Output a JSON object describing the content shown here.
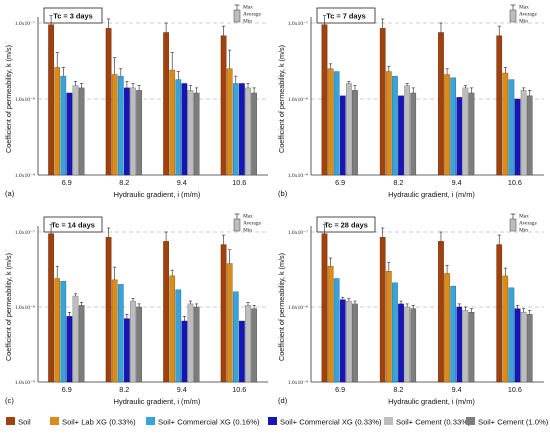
{
  "colors": {
    "series": [
      "#A0410E",
      "#D98C1A",
      "#37A3DC",
      "#1515B8",
      "#BDBDBD",
      "#7D7D7D"
    ]
  },
  "y_tick_labels": [
    "1.0x10⁻⁷",
    "1.0x10⁻⁸",
    "1.0x10⁻⁹"
  ],
  "legend_key": [
    "Max",
    "Average",
    "Min"
  ],
  "chart_data": [
    {
      "type": "bar",
      "panel_label": "(a)",
      "title": "Tc = 3 days",
      "xlabel": "Hydraulic gradient, i (m/m)",
      "ylabel": "Coefficient of permeability, k (m/s)",
      "categories": [
        "6.9",
        "8.2",
        "9.4",
        "10.6"
      ],
      "y_scale": "log",
      "ylim": [
        1e-09,
        1e-07
      ],
      "grid": "horizontal dashed",
      "series": [
        {
          "name": "Soil",
          "values": [
            9.5e-08,
            8.5e-08,
            7.5e-08,
            6.8e-08
          ],
          "err": [
            3e-08,
            2.8e-08,
            2.5e-08,
            2.3e-08
          ]
        },
        {
          "name": "Soil+ Lab XG (0.33%)",
          "values": [
            2.6e-08,
            2.1e-08,
            2.4e-08,
            2.5e-08
          ],
          "err": [
            1.5e-08,
            1.4e-08,
            1.7e-08,
            1.9e-08
          ]
        },
        {
          "name": "Soil+ Commercial XG (0.16%)",
          "values": [
            2e-08,
            2e-08,
            1.8e-08,
            1.6e-08
          ],
          "err": [
            6e-09,
            5e-09,
            5e-09,
            4e-09
          ]
        },
        {
          "name": "Soil+ Commercial XG (0.33%)",
          "values": [
            1.2e-08,
            1.4e-08,
            1.6e-08,
            1.6e-08
          ],
          "err": [
            0,
            3e-09,
            0,
            0
          ]
        },
        {
          "name": "Soil+ Cement (0.33%)",
          "values": [
            1.5e-08,
            1.4e-08,
            1.3e-08,
            1.4e-08
          ],
          "err": [
            2e-09,
            2e-09,
            2e-09,
            2e-09
          ]
        },
        {
          "name": "Soil+ Cement (1.0%)",
          "values": [
            1.4e-08,
            1.3e-08,
            1.2e-08,
            1.2e-08
          ],
          "err": [
            2e-09,
            2e-09,
            2e-09,
            2e-09
          ]
        }
      ]
    },
    {
      "type": "bar",
      "panel_label": "(b)",
      "title": "Tc = 7 days",
      "xlabel": "Hydraulic gradient, i (m/m)",
      "ylabel": "Coefficient of permeability, k (m/s)",
      "categories": [
        "6.9",
        "8.2",
        "9.4",
        "10.6"
      ],
      "y_scale": "log",
      "ylim": [
        1e-09,
        1e-07
      ],
      "grid": "horizontal dashed",
      "series": [
        {
          "name": "Soil",
          "values": [
            9.5e-08,
            8.5e-08,
            7.5e-08,
            6.8e-08
          ],
          "err": [
            3e-08,
            2.8e-08,
            2.5e-08,
            2.3e-08
          ]
        },
        {
          "name": "Soil+ Lab XG (0.33%)",
          "values": [
            2.5e-08,
            2.3e-08,
            2.1e-08,
            2.2e-08
          ],
          "err": [
            4e-09,
            4e-09,
            4e-09,
            4e-09
          ]
        },
        {
          "name": "Soil+ Commercial XG (0.16%)",
          "values": [
            2.3e-08,
            2e-08,
            1.9e-08,
            1.8e-08
          ],
          "err": [
            0,
            0,
            0,
            0
          ]
        },
        {
          "name": "Soil+ Commercial XG (0.33%)",
          "values": [
            1.1e-08,
            1.1e-08,
            1.05e-08,
            1e-08
          ],
          "err": [
            0,
            0,
            0,
            0
          ]
        },
        {
          "name": "Soil+ Cement (0.33%)",
          "values": [
            1.6e-08,
            1.5e-08,
            1.4e-08,
            1.3e-08
          ],
          "err": [
            1e-09,
            1e-09,
            1e-09,
            1e-09
          ]
        },
        {
          "name": "Soil+ Cement (1.0%)",
          "values": [
            1.3e-08,
            1.2e-08,
            1.2e-08,
            1.1e-08
          ],
          "err": [
            2e-09,
            2e-09,
            2e-09,
            2e-09
          ]
        }
      ]
    },
    {
      "type": "bar",
      "panel_label": "(c)",
      "title": "Tc = 14 days",
      "xlabel": "Hydraulic gradient, i (m/m)",
      "ylabel": "Coefficient of permeability, k (m/s)",
      "categories": [
        "6.9",
        "8.2",
        "9.4",
        "10.6"
      ],
      "y_scale": "log",
      "ylim": [
        1e-09,
        1e-07
      ],
      "grid": "horizontal dashed",
      "series": [
        {
          "name": "Soil",
          "values": [
            9.5e-08,
            8.5e-08,
            7.5e-08,
            6.8e-08
          ],
          "err": [
            3e-08,
            2.8e-08,
            2.5e-08,
            2.3e-08
          ]
        },
        {
          "name": "Soil+ Lab XG (0.33%)",
          "values": [
            2.4e-08,
            2.3e-08,
            2.6e-08,
            3.8e-08
          ],
          "err": [
            1.1e-08,
            1.1e-08,
            5e-09,
            2e-08
          ]
        },
        {
          "name": "Soil+ Commercial XG (0.16%)",
          "values": [
            2.2e-08,
            2e-08,
            1.7e-08,
            1.6e-08
          ],
          "err": [
            0,
            0,
            0,
            0
          ]
        },
        {
          "name": "Soil+ Commercial XG (0.33%)",
          "values": [
            7.5e-09,
            7e-09,
            6.5e-09,
            6.5e-09
          ],
          "err": [
            1e-09,
            1e-09,
            1e-09,
            0
          ]
        },
        {
          "name": "Soil+ Cement (0.33%)",
          "values": [
            1.4e-08,
            1.2e-08,
            1.1e-08,
            1.05e-08
          ],
          "err": [
            1e-09,
            1e-09,
            1e-09,
            1e-09
          ]
        },
        {
          "name": "Soil+ Cement (1.0%)",
          "values": [
            1.05e-08,
            1e-08,
            1e-08,
            9.5e-09
          ],
          "err": [
            1e-09,
            1e-09,
            1e-09,
            1e-09
          ]
        }
      ]
    },
    {
      "type": "bar",
      "panel_label": "(d)",
      "title": "Tc = 28 days",
      "xlabel": "Hydraulic gradient, i (m/m)",
      "ylabel": "Coefficient of permeability, k (m/s)",
      "categories": [
        "6.9",
        "8.2",
        "9.4",
        "10.6"
      ],
      "y_scale": "log",
      "ylim": [
        1e-09,
        1e-07
      ],
      "grid": "horizontal dashed",
      "series": [
        {
          "name": "Soil",
          "values": [
            9.5e-08,
            8.5e-08,
            7.5e-08,
            6.8e-08
          ],
          "err": [
            3e-08,
            2.8e-08,
            2.5e-08,
            2.3e-08
          ]
        },
        {
          "name": "Soil+ Lab XG (0.33%)",
          "values": [
            3.5e-08,
            3e-08,
            2.8e-08,
            2.6e-08
          ],
          "err": [
            1e-08,
            9e-09,
            8e-09,
            7e-09
          ]
        },
        {
          "name": "Soil+ Commercial XG (0.16%)",
          "values": [
            2.4e-08,
            2.1e-08,
            1.9e-08,
            1.8e-08
          ],
          "err": [
            0,
            0,
            0,
            0
          ]
        },
        {
          "name": "Soil+ Commercial XG (0.33%)",
          "values": [
            1.25e-08,
            1.1e-08,
            1e-08,
            9.5e-09
          ],
          "err": [
            1e-09,
            1e-09,
            1e-09,
            1e-09
          ]
        },
        {
          "name": "Soil+ Cement (0.33%)",
          "values": [
            1.2e-08,
            1e-08,
            9e-09,
            8.5e-09
          ],
          "err": [
            1e-09,
            1e-09,
            1e-09,
            1e-09
          ]
        },
        {
          "name": "Soil+ Cement (1.0%)",
          "values": [
            1.1e-08,
            9.5e-09,
            8.5e-09,
            8e-09
          ],
          "err": [
            1e-09,
            1e-09,
            1e-09,
            1e-09
          ]
        }
      ]
    }
  ],
  "legend": {
    "items": [
      "Soil",
      "Soil+ Lab XG (0.33%)",
      "Soil+ Commercial XG (0.16%)",
      "Soil+ Commercial XG (0.33%)",
      "Soil+ Cement (0.33%)",
      "Soil+ Cement (1.0%)"
    ]
  }
}
